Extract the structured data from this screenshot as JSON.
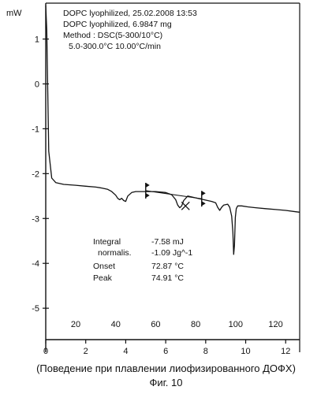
{
  "chart_data": {
    "type": "line",
    "header": [
      "DOPC  lyophilized, 25.02.2008 13:53",
      "DOPC  lyophilized, 6.9847 mg",
      "Method  : DSC(5-300/10°C)",
      "5.0-300.0°C  10.00°C/min"
    ],
    "y_unit_label": "mW",
    "y_ticks": [
      "1",
      "0",
      "-1",
      "-2",
      "-3",
      "-4",
      "-5"
    ],
    "y_tick_values": [
      1,
      0,
      -1,
      -2,
      -3,
      -4,
      -5
    ],
    "ylim": [
      -5.7,
      1.8
    ],
    "top_ticks": [
      "20",
      "40",
      "60",
      "80",
      "100",
      "120"
    ],
    "top_tick_values": [
      20,
      40,
      60,
      80,
      100,
      120
    ],
    "bottom_ticks": [
      "0",
      "2",
      "4",
      "6",
      "8",
      "10",
      "12"
    ],
    "bottom_tick_values": [
      0,
      2,
      4,
      6,
      8,
      10,
      12
    ],
    "xlim_min": [
      0,
      12.7
    ],
    "xlim_c": [
      5,
      132
    ],
    "x_unit": "°C",
    "series": [
      {
        "x": [
          5.0,
          5.5,
          6.5,
          8,
          10,
          14,
          20,
          25,
          30,
          33,
          36,
          38,
          40,
          41,
          42,
          43,
          44,
          45,
          46,
          48,
          50,
          55,
          60,
          65,
          68,
          70,
          71,
          72,
          73,
          74,
          76,
          80,
          84,
          88,
          90,
          91,
          92,
          93,
          94,
          96,
          97,
          98,
          98.6,
          99.0,
          99.4,
          99.8,
          100.3,
          101,
          103,
          106,
          110,
          115,
          120,
          125,
          130,
          132
        ],
        "y": [
          1.75,
          1.2,
          -1.5,
          -2.1,
          -2.2,
          -2.24,
          -2.26,
          -2.28,
          -2.3,
          -2.32,
          -2.35,
          -2.4,
          -2.48,
          -2.55,
          -2.58,
          -2.55,
          -2.6,
          -2.62,
          -2.5,
          -2.42,
          -2.4,
          -2.4,
          -2.4,
          -2.42,
          -2.47,
          -2.58,
          -2.7,
          -2.76,
          -2.72,
          -2.6,
          -2.5,
          -2.54,
          -2.58,
          -2.62,
          -2.65,
          -2.75,
          -2.82,
          -2.75,
          -2.7,
          -2.68,
          -2.75,
          -2.95,
          -3.3,
          -3.8,
          -3.6,
          -2.98,
          -2.78,
          -2.72,
          -2.72,
          -2.74,
          -2.76,
          -2.78,
          -2.8,
          -2.82,
          -2.85,
          -2.86
        ]
      }
    ],
    "integration_markers": [
      {
        "x": 55,
        "y": -2.38
      },
      {
        "x": 83,
        "y": -2.56
      }
    ],
    "peak_marker": {
      "x": 74.91,
      "y": -2.72
    },
    "results": [
      {
        "label": "Integral",
        "value": "-7.58 mJ"
      },
      {
        "label": "normalis.",
        "value": "-1.09 Jg^-1"
      },
      {
        "label": "Onset",
        "value": "72.87 °C"
      },
      {
        "label": "Peak",
        "value": "74.91 °C"
      }
    ]
  },
  "caption": {
    "line1": "(Поведение при плавлении лиофизированного ДОФХ)",
    "line2": "Фиг. 10"
  }
}
